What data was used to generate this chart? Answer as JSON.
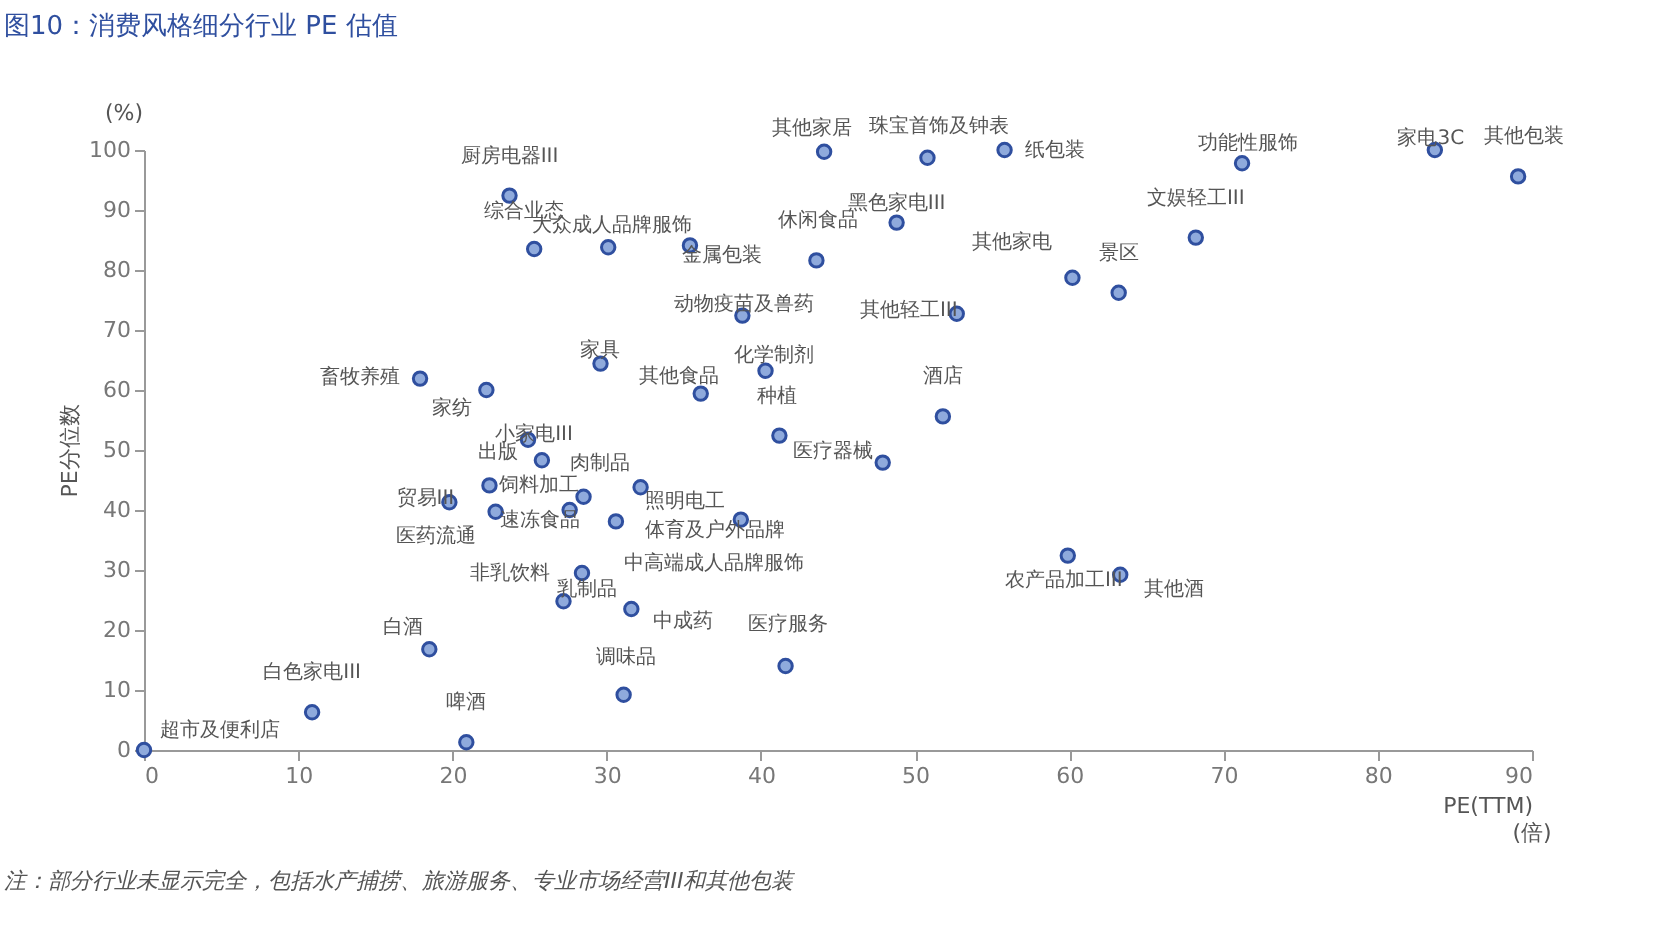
{
  "chart_data": {
    "type": "scatter",
    "title": "图10：消费风格细分行业 PE 估值",
    "xlabel": "PE(TTM)",
    "ylabel": "PE分位数",
    "annotations": [
      "(%)",
      "(倍)",
      "注：部分行业未显示完全，包括水产捕捞、旅游服务、专业市场经营III和其他包装"
    ],
    "xlim": [
      0,
      90
    ],
    "xticks": [
      0,
      10,
      20,
      30,
      40,
      50,
      60,
      70,
      80,
      90
    ],
    "ylim": [
      0,
      100
    ],
    "yticks": [
      0,
      10,
      20,
      30,
      40,
      50,
      60,
      70,
      80,
      90,
      100
    ],
    "grid": false,
    "marker": "circle",
    "series": [
      {
        "color": "#8faadc",
        "x": [
          23.7,
          25.3,
          30.1,
          35.4,
          43.6,
          44.1,
          50.8,
          55.8,
          48.8,
          60.2,
          63.2,
          68.2,
          71.2,
          83.7,
          89.1,
          38.8,
          52.7,
          29.6,
          36.1,
          40.3,
          51.8,
          41.2,
          47.9,
          17.9,
          22.2,
          24.9,
          25.8,
          22.4,
          28.5,
          32.2,
          19.8,
          22.8,
          27.6,
          30.6,
          38.7,
          28.4,
          27.2,
          31.6,
          18.5,
          31.1,
          41.6,
          10.9,
          20.9,
          0,
          59.9,
          63.3
        ],
        "values": [
          92.4,
          83.5,
          83.8,
          84.1,
          81.6,
          99.7,
          98.7,
          100,
          87.9,
          78.7,
          76.2,
          85.4,
          97.8,
          100,
          95.6,
          72.4,
          72.7,
          64.4,
          59.4,
          63.2,
          55.6,
          52.4,
          47.9,
          61.9,
          60,
          51.7,
          48.3,
          44.1,
          42.2,
          43.8,
          41.3,
          39.7,
          40,
          38.1,
          38.4,
          29.5,
          24.8,
          23.5,
          16.8,
          9.2,
          14,
          6.3,
          1.3,
          0,
          32.4,
          29.2
        ],
        "value_labels": [
          "厨房电器III",
          "综合业态",
          "大众成人品牌服饰",
          "金属包装",
          "休闲食品",
          "其他家居",
          "珠宝首饰及钟表",
          "纸包装",
          "黑色家电III",
          "其他家电",
          "景区",
          "文娱轻工III",
          "功能性服饰",
          "家电3C",
          "其他包装",
          "动物疫苗及兽药",
          "其他轻工III",
          "家具",
          "其他食品",
          "化学制剂",
          "酒店",
          "种植",
          "医疗器械",
          "畜牧养殖",
          "家纺",
          "小家电III",
          "出版",
          "饲料加工",
          "肉制品",
          "照明电工",
          "贸易III",
          "医药流通",
          "速冻食品",
          "中高端成人品牌服饰",
          "体育及户外品牌",
          "非乳饮料",
          "乳制品",
          "中成药",
          "白酒",
          "调味品",
          "医疗服务",
          "白色家电III",
          "啤酒",
          "超市及便利店",
          "农产品加工III",
          "其他酒"
        ]
      }
    ]
  }
}
